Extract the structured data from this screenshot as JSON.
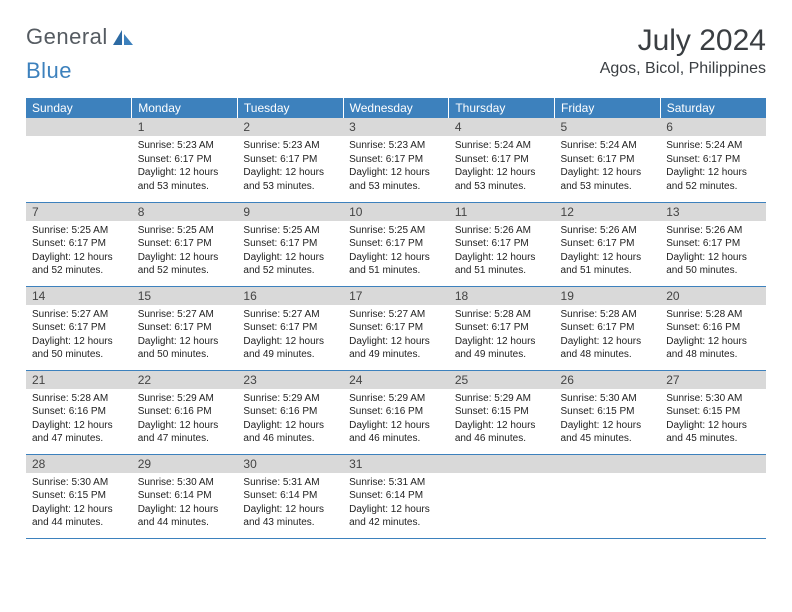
{
  "logo": {
    "text1": "General",
    "text2": "Blue"
  },
  "title": "July 2024",
  "location": "Agos, Bicol, Philippines",
  "header_bg": "#3d81bd",
  "daynum_bg": "#d9d9d9",
  "weekdays": [
    "Sunday",
    "Monday",
    "Tuesday",
    "Wednesday",
    "Thursday",
    "Friday",
    "Saturday"
  ],
  "weeks": [
    [
      {
        "day": "",
        "sunrise": "",
        "sunset": "",
        "daylight": ""
      },
      {
        "day": "1",
        "sunrise": "Sunrise: 5:23 AM",
        "sunset": "Sunset: 6:17 PM",
        "daylight": "Daylight: 12 hours and 53 minutes."
      },
      {
        "day": "2",
        "sunrise": "Sunrise: 5:23 AM",
        "sunset": "Sunset: 6:17 PM",
        "daylight": "Daylight: 12 hours and 53 minutes."
      },
      {
        "day": "3",
        "sunrise": "Sunrise: 5:23 AM",
        "sunset": "Sunset: 6:17 PM",
        "daylight": "Daylight: 12 hours and 53 minutes."
      },
      {
        "day": "4",
        "sunrise": "Sunrise: 5:24 AM",
        "sunset": "Sunset: 6:17 PM",
        "daylight": "Daylight: 12 hours and 53 minutes."
      },
      {
        "day": "5",
        "sunrise": "Sunrise: 5:24 AM",
        "sunset": "Sunset: 6:17 PM",
        "daylight": "Daylight: 12 hours and 53 minutes."
      },
      {
        "day": "6",
        "sunrise": "Sunrise: 5:24 AM",
        "sunset": "Sunset: 6:17 PM",
        "daylight": "Daylight: 12 hours and 52 minutes."
      }
    ],
    [
      {
        "day": "7",
        "sunrise": "Sunrise: 5:25 AM",
        "sunset": "Sunset: 6:17 PM",
        "daylight": "Daylight: 12 hours and 52 minutes."
      },
      {
        "day": "8",
        "sunrise": "Sunrise: 5:25 AM",
        "sunset": "Sunset: 6:17 PM",
        "daylight": "Daylight: 12 hours and 52 minutes."
      },
      {
        "day": "9",
        "sunrise": "Sunrise: 5:25 AM",
        "sunset": "Sunset: 6:17 PM",
        "daylight": "Daylight: 12 hours and 52 minutes."
      },
      {
        "day": "10",
        "sunrise": "Sunrise: 5:25 AM",
        "sunset": "Sunset: 6:17 PM",
        "daylight": "Daylight: 12 hours and 51 minutes."
      },
      {
        "day": "11",
        "sunrise": "Sunrise: 5:26 AM",
        "sunset": "Sunset: 6:17 PM",
        "daylight": "Daylight: 12 hours and 51 minutes."
      },
      {
        "day": "12",
        "sunrise": "Sunrise: 5:26 AM",
        "sunset": "Sunset: 6:17 PM",
        "daylight": "Daylight: 12 hours and 51 minutes."
      },
      {
        "day": "13",
        "sunrise": "Sunrise: 5:26 AM",
        "sunset": "Sunset: 6:17 PM",
        "daylight": "Daylight: 12 hours and 50 minutes."
      }
    ],
    [
      {
        "day": "14",
        "sunrise": "Sunrise: 5:27 AM",
        "sunset": "Sunset: 6:17 PM",
        "daylight": "Daylight: 12 hours and 50 minutes."
      },
      {
        "day": "15",
        "sunrise": "Sunrise: 5:27 AM",
        "sunset": "Sunset: 6:17 PM",
        "daylight": "Daylight: 12 hours and 50 minutes."
      },
      {
        "day": "16",
        "sunrise": "Sunrise: 5:27 AM",
        "sunset": "Sunset: 6:17 PM",
        "daylight": "Daylight: 12 hours and 49 minutes."
      },
      {
        "day": "17",
        "sunrise": "Sunrise: 5:27 AM",
        "sunset": "Sunset: 6:17 PM",
        "daylight": "Daylight: 12 hours and 49 minutes."
      },
      {
        "day": "18",
        "sunrise": "Sunrise: 5:28 AM",
        "sunset": "Sunset: 6:17 PM",
        "daylight": "Daylight: 12 hours and 49 minutes."
      },
      {
        "day": "19",
        "sunrise": "Sunrise: 5:28 AM",
        "sunset": "Sunset: 6:17 PM",
        "daylight": "Daylight: 12 hours and 48 minutes."
      },
      {
        "day": "20",
        "sunrise": "Sunrise: 5:28 AM",
        "sunset": "Sunset: 6:16 PM",
        "daylight": "Daylight: 12 hours and 48 minutes."
      }
    ],
    [
      {
        "day": "21",
        "sunrise": "Sunrise: 5:28 AM",
        "sunset": "Sunset: 6:16 PM",
        "daylight": "Daylight: 12 hours and 47 minutes."
      },
      {
        "day": "22",
        "sunrise": "Sunrise: 5:29 AM",
        "sunset": "Sunset: 6:16 PM",
        "daylight": "Daylight: 12 hours and 47 minutes."
      },
      {
        "day": "23",
        "sunrise": "Sunrise: 5:29 AM",
        "sunset": "Sunset: 6:16 PM",
        "daylight": "Daylight: 12 hours and 46 minutes."
      },
      {
        "day": "24",
        "sunrise": "Sunrise: 5:29 AM",
        "sunset": "Sunset: 6:16 PM",
        "daylight": "Daylight: 12 hours and 46 minutes."
      },
      {
        "day": "25",
        "sunrise": "Sunrise: 5:29 AM",
        "sunset": "Sunset: 6:15 PM",
        "daylight": "Daylight: 12 hours and 46 minutes."
      },
      {
        "day": "26",
        "sunrise": "Sunrise: 5:30 AM",
        "sunset": "Sunset: 6:15 PM",
        "daylight": "Daylight: 12 hours and 45 minutes."
      },
      {
        "day": "27",
        "sunrise": "Sunrise: 5:30 AM",
        "sunset": "Sunset: 6:15 PM",
        "daylight": "Daylight: 12 hours and 45 minutes."
      }
    ],
    [
      {
        "day": "28",
        "sunrise": "Sunrise: 5:30 AM",
        "sunset": "Sunset: 6:15 PM",
        "daylight": "Daylight: 12 hours and 44 minutes."
      },
      {
        "day": "29",
        "sunrise": "Sunrise: 5:30 AM",
        "sunset": "Sunset: 6:14 PM",
        "daylight": "Daylight: 12 hours and 44 minutes."
      },
      {
        "day": "30",
        "sunrise": "Sunrise: 5:31 AM",
        "sunset": "Sunset: 6:14 PM",
        "daylight": "Daylight: 12 hours and 43 minutes."
      },
      {
        "day": "31",
        "sunrise": "Sunrise: 5:31 AM",
        "sunset": "Sunset: 6:14 PM",
        "daylight": "Daylight: 12 hours and 42 minutes."
      },
      {
        "day": "",
        "sunrise": "",
        "sunset": "",
        "daylight": ""
      },
      {
        "day": "",
        "sunrise": "",
        "sunset": "",
        "daylight": ""
      },
      {
        "day": "",
        "sunrise": "",
        "sunset": "",
        "daylight": ""
      }
    ]
  ]
}
